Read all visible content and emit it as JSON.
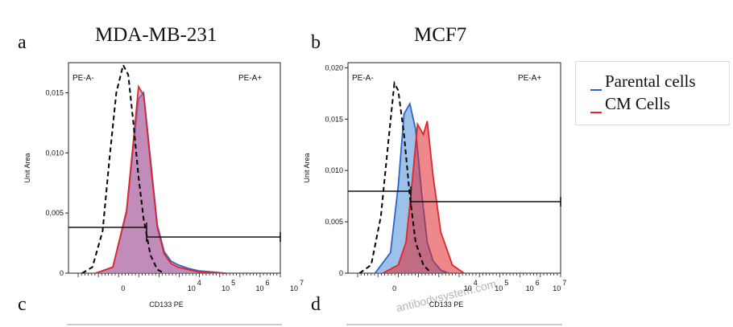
{
  "panels": {
    "a": {
      "letter": "a",
      "title": "MDA-MB-231"
    },
    "b": {
      "letter": "b",
      "title": "MCF7"
    },
    "c": {
      "letter": "c"
    },
    "d": {
      "letter": "d"
    }
  },
  "legend": {
    "items": [
      {
        "label": "Parental cells",
        "color": "#2f63c8"
      },
      {
        "label": "CM Cells",
        "color": "#e0262b"
      }
    ]
  },
  "watermark": "antibodysystem.com",
  "chart_data": [
    {
      "type": "area",
      "xlabel": "CD133 PE",
      "ylabel": "Unit Area",
      "ylim": [
        0,
        0.0175
      ],
      "yticks": [
        0,
        0.005,
        0.01,
        0.015
      ],
      "ytick_labels": [
        "0",
        "0,005",
        "0,010",
        "0,015"
      ],
      "xtick_labels": [
        "0",
        "10",
        "10",
        "10",
        "10"
      ],
      "xtick_exponents": [
        "",
        "4",
        "5",
        "6",
        "7"
      ],
      "gates": [
        {
          "label": "PE-A-"
        },
        {
          "label": "PE-A+"
        }
      ],
      "series": [
        {
          "name": "Parental cells",
          "color": "#2f63c8",
          "fill": "#b070a8",
          "x": [
            -0.8,
            -0.3,
            0.1,
            0.3,
            0.45,
            0.6,
            0.8,
            1.0,
            1.2,
            1.4,
            1.6,
            1.9,
            2.2,
            2.6,
            3.0
          ],
          "y": [
            0,
            0.0005,
            0.005,
            0.0105,
            0.0145,
            0.015,
            0.0095,
            0.004,
            0.0018,
            0.001,
            0.0007,
            0.0004,
            0.0002,
            0.0001,
            0
          ]
        },
        {
          "name": "CM Cells",
          "color": "#e0262b",
          "fill": "#b070a8",
          "x": [
            -0.8,
            -0.3,
            0.1,
            0.3,
            0.45,
            0.6,
            0.8,
            1.0,
            1.2,
            1.4,
            1.6,
            1.9,
            2.2,
            2.6,
            3.0
          ],
          "y": [
            0,
            0.0005,
            0.0052,
            0.011,
            0.0155,
            0.0148,
            0.0092,
            0.0038,
            0.0016,
            0.0008,
            0.0005,
            0.0003,
            0.0001,
            5e-05,
            0
          ]
        },
        {
          "color": "#000000",
          "style": "dashed",
          "x": [
            -1.2,
            -0.9,
            -0.6,
            -0.4,
            -0.2,
            0.0,
            0.15,
            0.3,
            0.45,
            0.6,
            0.8,
            1.0,
            1.2
          ],
          "y": [
            0,
            0.0005,
            0.0035,
            0.0095,
            0.015,
            0.0173,
            0.0165,
            0.0125,
            0.008,
            0.0045,
            0.0015,
            0.0003,
            0
          ]
        }
      ]
    },
    {
      "type": "area",
      "xlabel": "CD133 PE",
      "ylabel": "Unit Area",
      "ylim": [
        0,
        0.0205
      ],
      "yticks": [
        0,
        0.005,
        0.01,
        0.015,
        0.02
      ],
      "ytick_labels": [
        "0",
        "0,005",
        "0,010",
        "0,015",
        "0,020"
      ],
      "xtick_labels": [
        "0",
        "10",
        "10",
        "10",
        "10"
      ],
      "xtick_exponents": [
        "",
        "4",
        "5",
        "6",
        "7"
      ],
      "gates": [
        {
          "label": "PE-A-"
        },
        {
          "label": "PE-A+"
        }
      ],
      "series": [
        {
          "name": "Parental cells",
          "color": "#2f63c8",
          "fill": "#4a90d8",
          "x": [
            -0.5,
            -0.1,
            0.1,
            0.25,
            0.4,
            0.55,
            0.7,
            0.85,
            1.0,
            1.2,
            1.4
          ],
          "y": [
            0,
            0.002,
            0.0085,
            0.0155,
            0.0165,
            0.014,
            0.008,
            0.003,
            0.0012,
            0.0003,
            0
          ]
        },
        {
          "name": "CM Cells",
          "color": "#e0262b",
          "fill": "#e0262b",
          "x": [
            -0.3,
            0.1,
            0.3,
            0.45,
            0.6,
            0.75,
            0.85,
            1.0,
            1.2,
            1.5,
            1.8
          ],
          "y": [
            0,
            0.0008,
            0.003,
            0.0085,
            0.0145,
            0.0135,
            0.0148,
            0.0095,
            0.004,
            0.0008,
            0
          ]
        },
        {
          "color": "#000000",
          "style": "dashed",
          "x": [
            -0.9,
            -0.6,
            -0.35,
            -0.15,
            0.0,
            0.1,
            0.25,
            0.4,
            0.55,
            0.75,
            0.95
          ],
          "y": [
            0,
            0.0008,
            0.0055,
            0.013,
            0.0185,
            0.0178,
            0.0135,
            0.0075,
            0.003,
            0.0008,
            0
          ]
        }
      ]
    }
  ]
}
